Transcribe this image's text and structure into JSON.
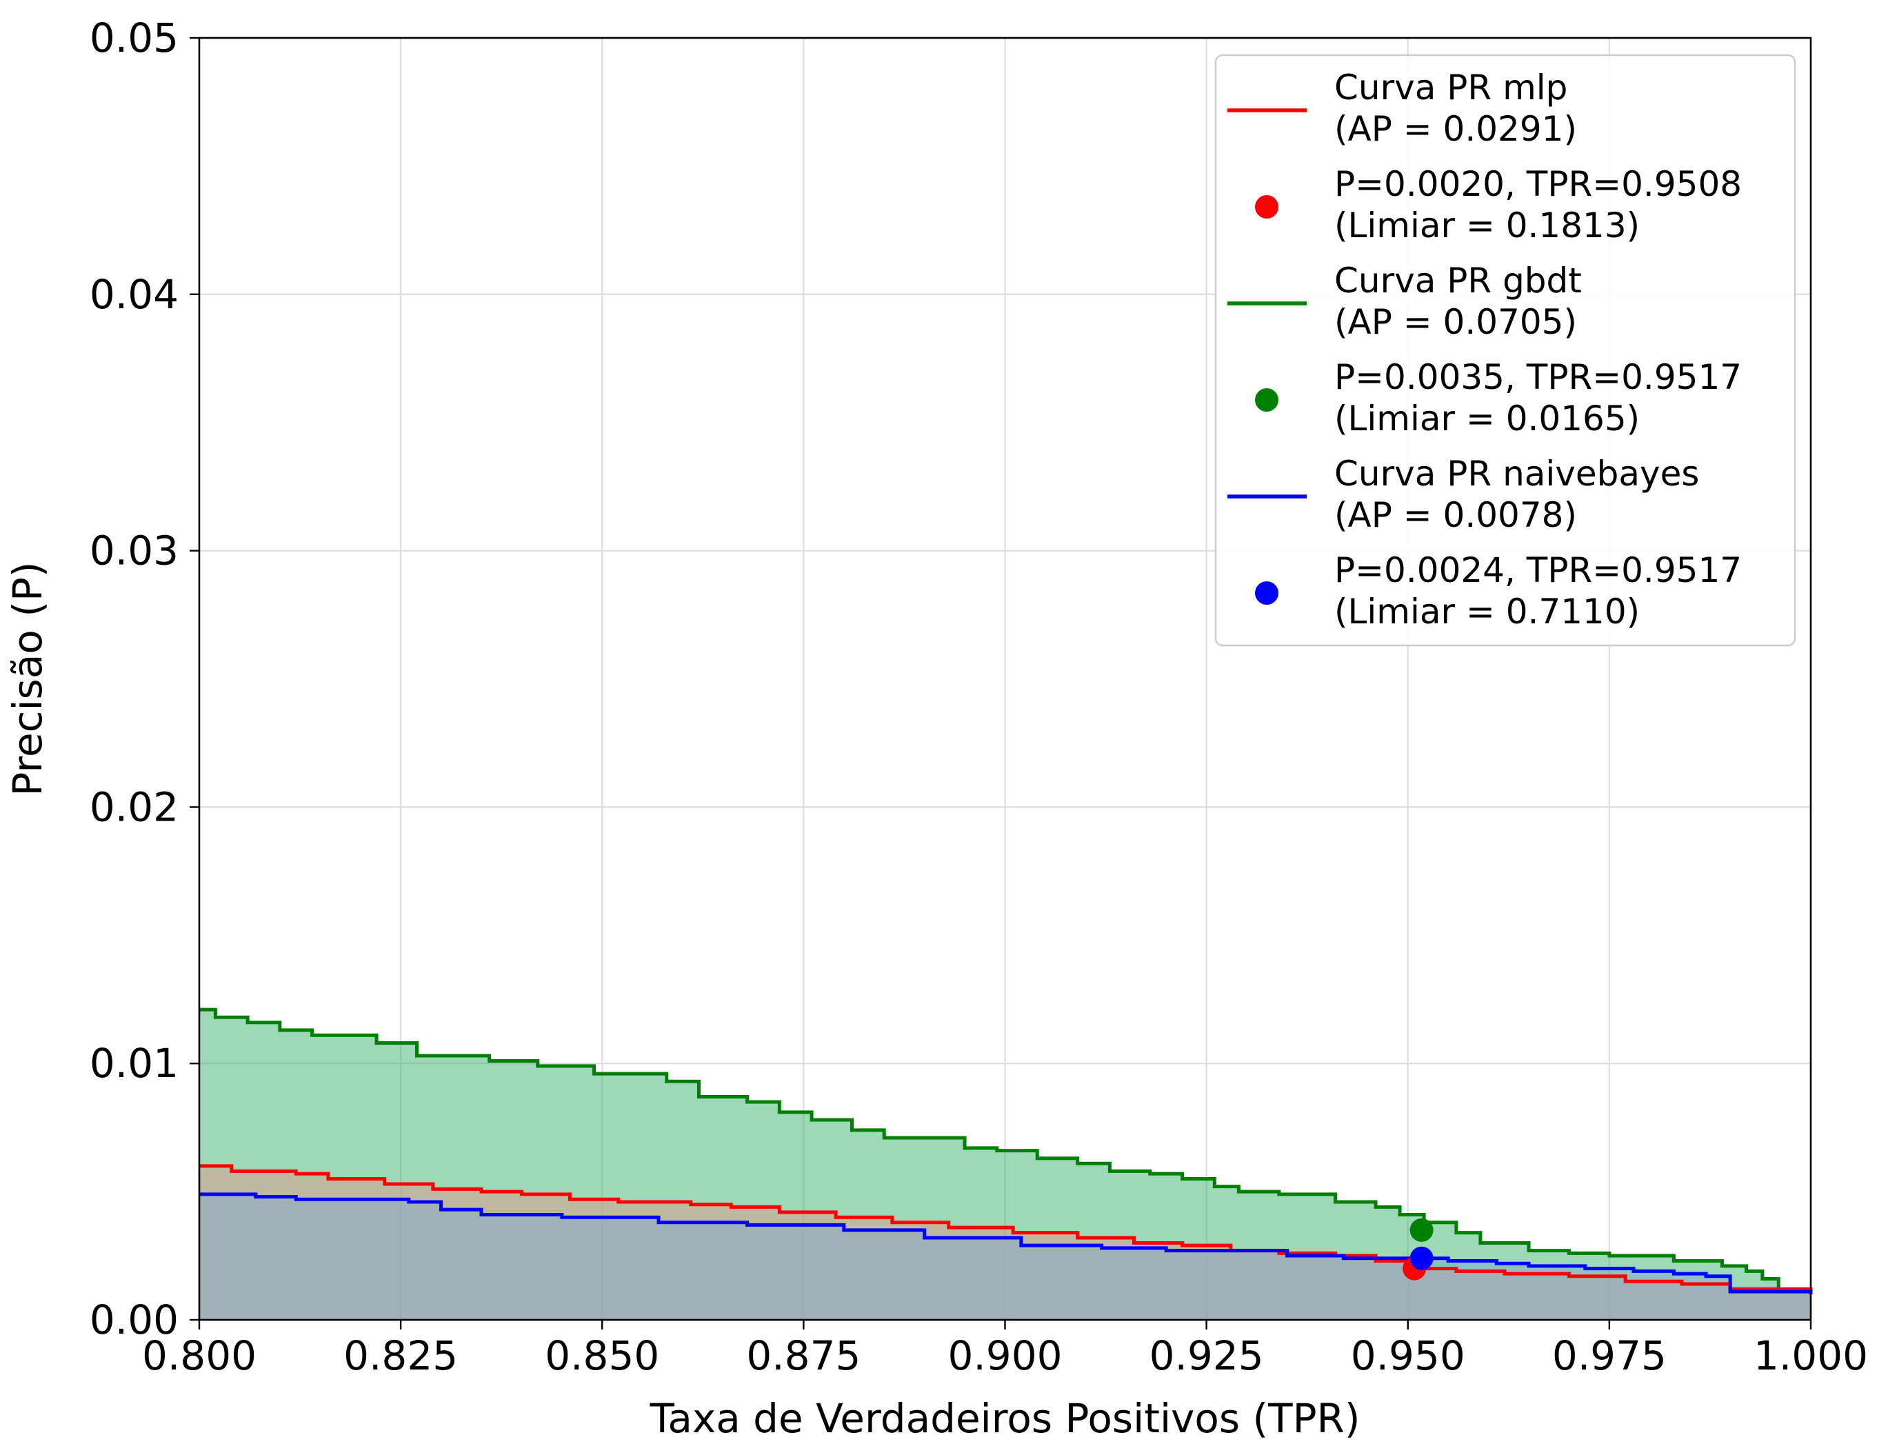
{
  "chart_data": {
    "type": "line",
    "title": "",
    "xlabel": "Taxa de Verdadeiros Positivos (TPR)",
    "ylabel": "Precisão (P)",
    "xlim": [
      0.8,
      1.0
    ],
    "ylim": [
      0.0,
      0.05
    ],
    "grid": true,
    "legend_position": "top-right",
    "x_ticks": [
      "0.800",
      "0.825",
      "0.850",
      "0.875",
      "0.900",
      "0.925",
      "0.950",
      "0.975",
      "1.000"
    ],
    "y_ticks": [
      "0.00",
      "0.01",
      "0.02",
      "0.03",
      "0.04",
      "0.05"
    ],
    "series": [
      {
        "name": "Curva PR gbdt",
        "ap_label": "(AP = 0.0705)",
        "color": "#008000",
        "fill_color": "#3cb371",
        "x": [
          0.8,
          0.802,
          0.806,
          0.81,
          0.814,
          0.822,
          0.827,
          0.836,
          0.842,
          0.849,
          0.858,
          0.862,
          0.868,
          0.872,
          0.876,
          0.881,
          0.885,
          0.895,
          0.899,
          0.904,
          0.909,
          0.913,
          0.918,
          0.922,
          0.926,
          0.929,
          0.934,
          0.941,
          0.946,
          0.949,
          0.952,
          0.956,
          0.959,
          0.965,
          0.97,
          0.975,
          0.983,
          0.989,
          0.992,
          0.994,
          0.996,
          1.0
        ],
        "y": [
          0.0121,
          0.0118,
          0.0116,
          0.0113,
          0.0111,
          0.0108,
          0.0103,
          0.0101,
          0.0099,
          0.0096,
          0.0093,
          0.0087,
          0.0085,
          0.0081,
          0.0078,
          0.0074,
          0.0071,
          0.0067,
          0.0066,
          0.0063,
          0.0061,
          0.0058,
          0.0057,
          0.0055,
          0.0052,
          0.005,
          0.0049,
          0.0046,
          0.0044,
          0.0041,
          0.0038,
          0.0034,
          0.003,
          0.0027,
          0.0026,
          0.0025,
          0.0023,
          0.0021,
          0.0019,
          0.0016,
          0.0012,
          0.0011
        ]
      },
      {
        "name": "Curva PR mlp",
        "ap_label": "(AP = 0.0291)",
        "color": "#ff0000",
        "fill_color": "#e39a8a",
        "x": [
          0.8,
          0.804,
          0.812,
          0.816,
          0.823,
          0.829,
          0.835,
          0.84,
          0.846,
          0.852,
          0.861,
          0.866,
          0.872,
          0.879,
          0.886,
          0.893,
          0.901,
          0.909,
          0.916,
          0.922,
          0.928,
          0.934,
          0.941,
          0.946,
          0.9508,
          0.956,
          0.962,
          0.97,
          0.977,
          0.984,
          0.99,
          1.0
        ],
        "y": [
          0.006,
          0.0058,
          0.0057,
          0.0055,
          0.0053,
          0.0051,
          0.005,
          0.0049,
          0.0047,
          0.0046,
          0.0045,
          0.0044,
          0.0042,
          0.004,
          0.0038,
          0.0036,
          0.0034,
          0.0032,
          0.003,
          0.0029,
          0.0027,
          0.0026,
          0.0025,
          0.0023,
          0.002,
          0.0019,
          0.0018,
          0.0017,
          0.0015,
          0.0014,
          0.0012,
          0.0011
        ]
      },
      {
        "name": "Curva PR naivebayes",
        "ap_label": "(AP = 0.0078)",
        "color": "#0000ff",
        "fill_color": "#7fa9d2",
        "x": [
          0.8,
          0.807,
          0.812,
          0.826,
          0.83,
          0.835,
          0.845,
          0.857,
          0.868,
          0.88,
          0.89,
          0.902,
          0.912,
          0.92,
          0.935,
          0.942,
          0.95,
          0.955,
          0.961,
          0.965,
          0.972,
          0.978,
          0.983,
          0.987,
          0.99,
          1.0
        ],
        "y": [
          0.0049,
          0.0048,
          0.0047,
          0.0046,
          0.0043,
          0.0041,
          0.004,
          0.0038,
          0.0037,
          0.0035,
          0.0032,
          0.0029,
          0.0028,
          0.0027,
          0.0025,
          0.0024,
          0.0024,
          0.0023,
          0.0022,
          0.0021,
          0.002,
          0.0019,
          0.0018,
          0.0017,
          0.0011,
          0.001
        ]
      }
    ],
    "points": [
      {
        "label": "P=0.0020, TPR=0.9508",
        "threshold_label": "(Limiar = 0.1813)",
        "x": 0.9508,
        "y": 0.002,
        "color": "#ff0000"
      },
      {
        "label": "P=0.0035, TPR=0.9517",
        "threshold_label": "(Limiar = 0.0165)",
        "x": 0.9517,
        "y": 0.0035,
        "color": "#008000"
      },
      {
        "label": "P=0.0024, TPR=0.9517",
        "threshold_label": "(Limiar = 0.7110)",
        "x": 0.9517,
        "y": 0.0024,
        "color": "#0000ff"
      }
    ],
    "legend": [
      {
        "kind": "line",
        "color": "#ff0000",
        "line1": "Curva PR mlp",
        "line2": "(AP = 0.0291)"
      },
      {
        "kind": "dot",
        "color": "#ff0000",
        "line1": "P=0.0020, TPR=0.9508",
        "line2": "(Limiar = 0.1813)"
      },
      {
        "kind": "line",
        "color": "#008000",
        "line1": "Curva PR gbdt",
        "line2": "(AP = 0.0705)"
      },
      {
        "kind": "dot",
        "color": "#008000",
        "line1": "P=0.0035, TPR=0.9517",
        "line2": "(Limiar = 0.0165)"
      },
      {
        "kind": "line",
        "color": "#0000ff",
        "line1": "Curva PR naivebayes",
        "line2": "(AP = 0.0078)"
      },
      {
        "kind": "dot",
        "color": "#0000ff",
        "line1": "P=0.0024, TPR=0.9517",
        "line2": "(Limiar = 0.7110)"
      }
    ]
  }
}
